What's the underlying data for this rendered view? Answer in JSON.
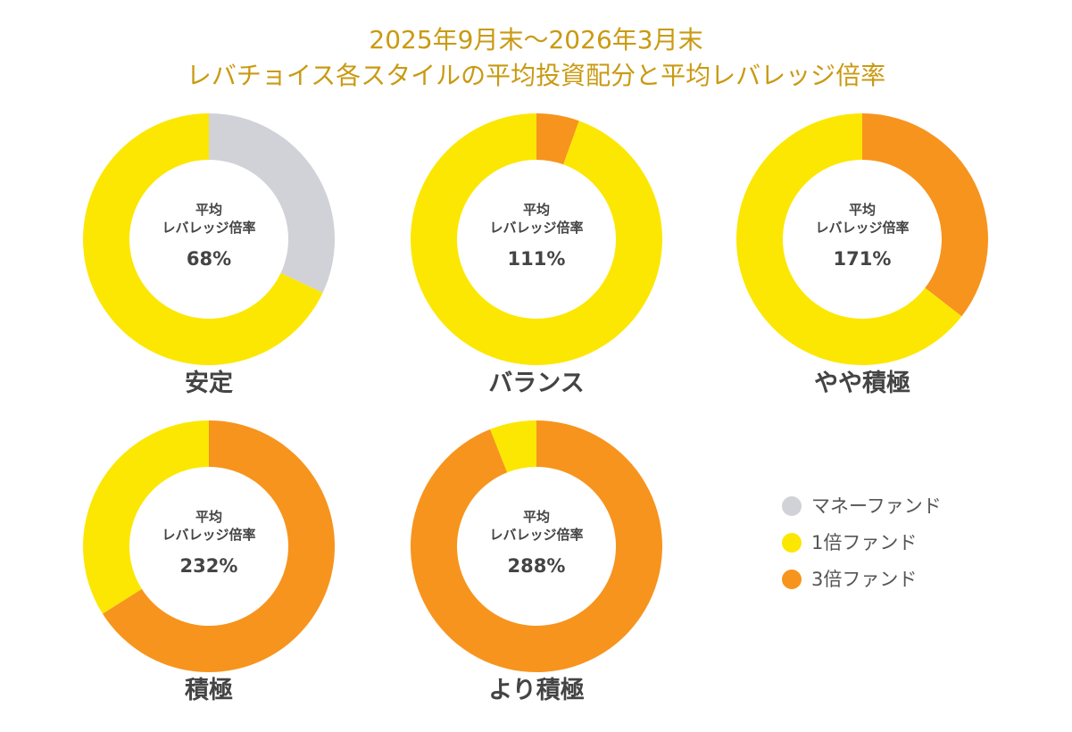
{
  "title": {
    "line1": "2025年9月末〜2026年3月末",
    "line2": "レバチョイス各スタイルの平均投資配分と平均レバレッジ倍率"
  },
  "colors": {
    "money_fund": "#D0D2D8",
    "fund_1x": "#FCE703",
    "fund_3x": "#F7941D",
    "title": "#C99A12",
    "text": "#444444"
  },
  "legend": [
    {
      "label": "マネーファンド",
      "color": "#D0D2D8"
    },
    {
      "label": "1倍ファンド",
      "color": "#FCE703"
    },
    {
      "label": "3倍ファンド",
      "color": "#F7941D"
    }
  ],
  "chart_data": [
    {
      "type": "pie",
      "name": "安定",
      "center_label": [
        "平均",
        "レバレッジ倍率"
      ],
      "center_value": "68%",
      "slices": [
        {
          "label": "マネーファンド",
          "value": 32,
          "color": "#D0D2D8"
        },
        {
          "label": "1倍ファンド",
          "value": 68,
          "color": "#FCE703"
        },
        {
          "label": "3倍ファンド",
          "value": 0,
          "color": "#F7941D"
        }
      ]
    },
    {
      "type": "pie",
      "name": "バランス",
      "center_label": [
        "平均",
        "レバレッジ倍率"
      ],
      "center_value": "111%",
      "slices": [
        {
          "label": "マネーファンド",
          "value": 0,
          "color": "#D0D2D8"
        },
        {
          "label": "1倍ファンド",
          "value": 94.5,
          "color": "#FCE703"
        },
        {
          "label": "3倍ファンド",
          "value": 5.5,
          "color": "#F7941D"
        }
      ]
    },
    {
      "type": "pie",
      "name": "やや積極",
      "center_label": [
        "平均",
        "レバレッジ倍率"
      ],
      "center_value": "171%",
      "slices": [
        {
          "label": "マネーファンド",
          "value": 0,
          "color": "#D0D2D8"
        },
        {
          "label": "1倍ファンド",
          "value": 64.5,
          "color": "#FCE703"
        },
        {
          "label": "3倍ファンド",
          "value": 35.5,
          "color": "#F7941D"
        }
      ]
    },
    {
      "type": "pie",
      "name": "積極",
      "center_label": [
        "平均",
        "レバレッジ倍率"
      ],
      "center_value": "232%",
      "slices": [
        {
          "label": "マネーファンド",
          "value": 0,
          "color": "#D0D2D8"
        },
        {
          "label": "1倍ファンド",
          "value": 34,
          "color": "#FCE703"
        },
        {
          "label": "3倍ファンド",
          "value": 66,
          "color": "#F7941D"
        }
      ]
    },
    {
      "type": "pie",
      "name": "より積極",
      "center_label": [
        "平均",
        "レバレッジ倍率"
      ],
      "center_value": "288%",
      "slices": [
        {
          "label": "マネーファンド",
          "value": 0,
          "color": "#D0D2D8"
        },
        {
          "label": "1倍ファンド",
          "value": 6,
          "color": "#FCE703"
        },
        {
          "label": "3倍ファンド",
          "value": 94,
          "color": "#F7941D"
        }
      ]
    }
  ]
}
